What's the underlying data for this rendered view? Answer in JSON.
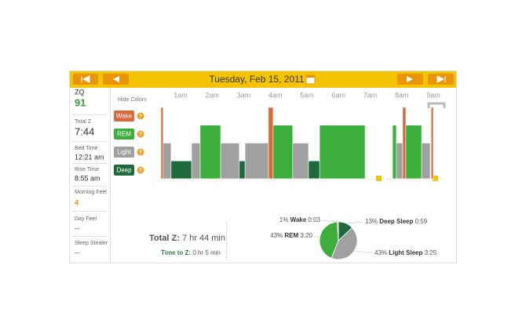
{
  "header": {
    "date": "Tuesday, Feb 15, 2011"
  },
  "sidebar": [
    {
      "label": "ZQ",
      "value": "91"
    },
    {
      "label": "Total Z",
      "value": "7:44"
    },
    {
      "label": "Bed Time",
      "value": "12:21 am"
    },
    {
      "label": "Rise Time",
      "value": "8:55 am"
    },
    {
      "label": "Morning Feel",
      "value": "4"
    },
    {
      "label": "Day Feel",
      "value": "--"
    },
    {
      "label": "Sleep Stealer",
      "value": "--"
    }
  ],
  "legend": {
    "toggle": "Hide Colors"
  },
  "summary": {
    "total_label": "Total Z:",
    "total": "7 hr 44 min",
    "time_to_label": "Time to Z:",
    "time_to": "0 hr 5 min"
  },
  "chart_data": [
    {
      "type": "timeline",
      "xlim": [
        0.38,
        9.2
      ],
      "xticks": [
        {
          "value": 1,
          "label": "1am"
        },
        {
          "value": 2,
          "label": "2am"
        },
        {
          "value": 3,
          "label": "3am"
        },
        {
          "value": 4,
          "label": "4am"
        },
        {
          "value": 5,
          "label": "5am"
        },
        {
          "value": 6,
          "label": "6am"
        },
        {
          "value": 7,
          "label": "7am"
        },
        {
          "value": 8,
          "label": "8am"
        },
        {
          "value": 9,
          "label": "9am"
        }
      ],
      "series": [
        {
          "name": "Wake",
          "color": "#d9683a",
          "intervals": [
            [
              0.38,
              0.45
            ],
            [
              3.78,
              3.93
            ],
            [
              8.03,
              8.13
            ],
            [
              8.93,
              9.0
            ]
          ]
        },
        {
          "name": "REM",
          "color": "#3cae3c",
          "intervals": [
            [
              1.62,
              2.27
            ],
            [
              3.93,
              4.55
            ],
            [
              5.4,
              6.84
            ],
            [
              7.71,
              7.83
            ],
            [
              8.13,
              8.63
            ]
          ]
        },
        {
          "name": "Light",
          "color": "#a0a0a0",
          "intervals": [
            [
              0.45,
              0.7
            ],
            [
              1.35,
              1.62
            ],
            [
              2.27,
              2.86
            ],
            [
              3.04,
              3.78
            ],
            [
              4.55,
              5.05
            ],
            [
              7.83,
              8.03
            ],
            [
              8.63,
              8.9
            ]
          ]
        },
        {
          "name": "Deep",
          "color": "#1d6b3b",
          "intervals": [
            [
              0.7,
              1.35
            ],
            [
              2.86,
              3.04
            ],
            [
              5.05,
              5.4
            ]
          ]
        }
      ]
    },
    {
      "type": "pie",
      "categories": [
        "Deep Sleep",
        "Light Sleep",
        "REM",
        "Wake"
      ],
      "values": [
        13,
        43,
        43,
        1
      ],
      "value_labels": [
        "13%",
        "43%",
        "43%",
        "1%"
      ],
      "durations": [
        "0:59",
        "3:25",
        "3:20",
        "0:03"
      ],
      "colors": [
        "#1d6b3b",
        "#a0a0a0",
        "#3cae3c",
        "#d9683a"
      ]
    }
  ]
}
